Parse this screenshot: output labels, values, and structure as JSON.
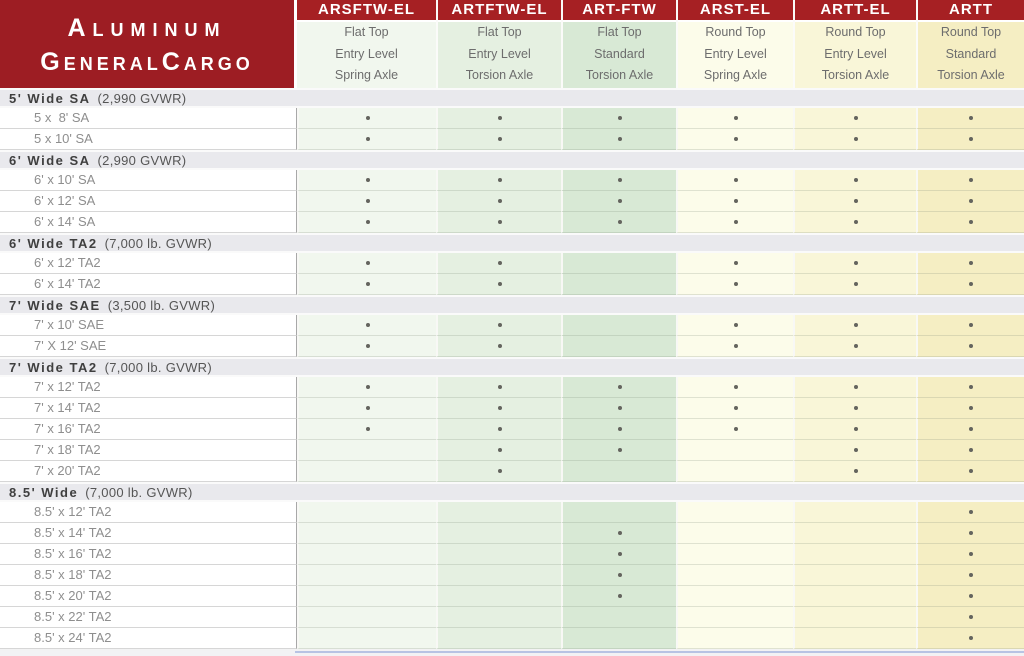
{
  "header": {
    "title": {
      "l1_cap": "A",
      "l1_rest": "LUMINUM",
      "l2_cap1": "G",
      "l2_rest1": "ENERAL",
      "l2_cap2": "C",
      "l2_rest2": "ARGO",
      "full_text": "Aluminum GeneralCargo"
    }
  },
  "colors": {
    "title_bg": "#9d1d23",
    "band_bg": "#a62023",
    "section_bg": "#e9e9ed",
    "dot": "#64645e"
  },
  "columns": [
    {
      "code": "ARSFTW-EL",
      "top": "Flat Top",
      "level": "Entry Level",
      "axle": "Spring Axle",
      "bg": "#f1f7ee"
    },
    {
      "code": "ARTFTW-EL",
      "top": "Flat Top",
      "level": "Entry Level",
      "axle": "Torsion Axle",
      "bg": "#e5f0e1"
    },
    {
      "code": "ART-FTW",
      "top": "Flat Top",
      "level": "Standard",
      "axle": "Torsion Axle",
      "bg": "#d8e9d5"
    },
    {
      "code": "ARST-EL",
      "top": "Round Top",
      "level": "Entry Level",
      "axle": "Spring Axle",
      "bg": "#fcfcea"
    },
    {
      "code": "ARTT-EL",
      "top": "Round Top",
      "level": "Entry Level",
      "axle": "Torsion Axle",
      "bg": "#f9f6d8"
    },
    {
      "code": "ARTT",
      "top": "Round Top",
      "level": "Standard",
      "axle": "Torsion Axle",
      "bg": "#f5eec3"
    }
  ],
  "sections": [
    {
      "title": "5' Wide SA",
      "gvwr": "(2,990 GVWR)",
      "rows": [
        {
          "label": "5 x  8' SA",
          "dots": [
            1,
            1,
            1,
            1,
            1,
            1
          ]
        },
        {
          "label": "5 x 10' SA",
          "dots": [
            1,
            1,
            1,
            1,
            1,
            1
          ]
        }
      ]
    },
    {
      "title": "6' Wide SA",
      "gvwr": "(2,990 GVWR)",
      "rows": [
        {
          "label": "6' x 10' SA",
          "dots": [
            1,
            1,
            1,
            1,
            1,
            1
          ]
        },
        {
          "label": "6' x 12' SA",
          "dots": [
            1,
            1,
            1,
            1,
            1,
            1
          ]
        },
        {
          "label": "6' x 14' SA",
          "dots": [
            1,
            1,
            1,
            1,
            1,
            1
          ]
        }
      ]
    },
    {
      "title": "6' Wide TA2",
      "gvwr": "(7,000 lb. GVWR)",
      "rows": [
        {
          "label": "6' x 12' TA2",
          "dots": [
            1,
            1,
            0,
            1,
            1,
            1
          ]
        },
        {
          "label": "6' x 14' TA2",
          "dots": [
            1,
            1,
            0,
            1,
            1,
            1
          ]
        }
      ]
    },
    {
      "title": "7' Wide SAE",
      "gvwr": "(3,500 lb. GVWR)",
      "rows": [
        {
          "label": "7' x 10' SAE",
          "dots": [
            1,
            1,
            0,
            1,
            1,
            1
          ]
        },
        {
          "label": "7' X 12' SAE",
          "dots": [
            1,
            1,
            0,
            1,
            1,
            1
          ]
        }
      ]
    },
    {
      "title": "7' Wide TA2",
      "gvwr": "(7,000 lb. GVWR)",
      "rows": [
        {
          "label": "7' x 12' TA2",
          "dots": [
            1,
            1,
            1,
            1,
            1,
            1
          ]
        },
        {
          "label": "7' x 14' TA2",
          "dots": [
            1,
            1,
            1,
            1,
            1,
            1
          ]
        },
        {
          "label": "7' x 16' TA2",
          "dots": [
            1,
            1,
            1,
            1,
            1,
            1
          ]
        },
        {
          "label": "7' x 18' TA2",
          "dots": [
            0,
            1,
            1,
            0,
            1,
            1
          ]
        },
        {
          "label": "7' x 20' TA2",
          "dots": [
            0,
            1,
            0,
            0,
            1,
            1
          ]
        }
      ]
    },
    {
      "title": "8.5' Wide",
      "gvwr": "(7,000 lb. GVWR)",
      "rows": [
        {
          "label": "8.5' x 12' TA2",
          "dots": [
            0,
            0,
            0,
            0,
            0,
            1
          ]
        },
        {
          "label": "8.5' x 14' TA2",
          "dots": [
            0,
            0,
            1,
            0,
            0,
            1
          ]
        },
        {
          "label": "8.5' x 16' TA2",
          "dots": [
            0,
            0,
            1,
            0,
            0,
            1
          ]
        },
        {
          "label": "8.5' x 18' TA2",
          "dots": [
            0,
            0,
            1,
            0,
            0,
            1
          ]
        },
        {
          "label": "8.5' x 20' TA2",
          "dots": [
            0,
            0,
            1,
            0,
            0,
            1
          ]
        },
        {
          "label": "8.5' x 22' TA2",
          "dots": [
            0,
            0,
            0,
            0,
            0,
            1
          ]
        },
        {
          "label": "8.5' x 24' TA2",
          "dots": [
            0,
            0,
            0,
            0,
            0,
            1
          ]
        }
      ]
    }
  ]
}
